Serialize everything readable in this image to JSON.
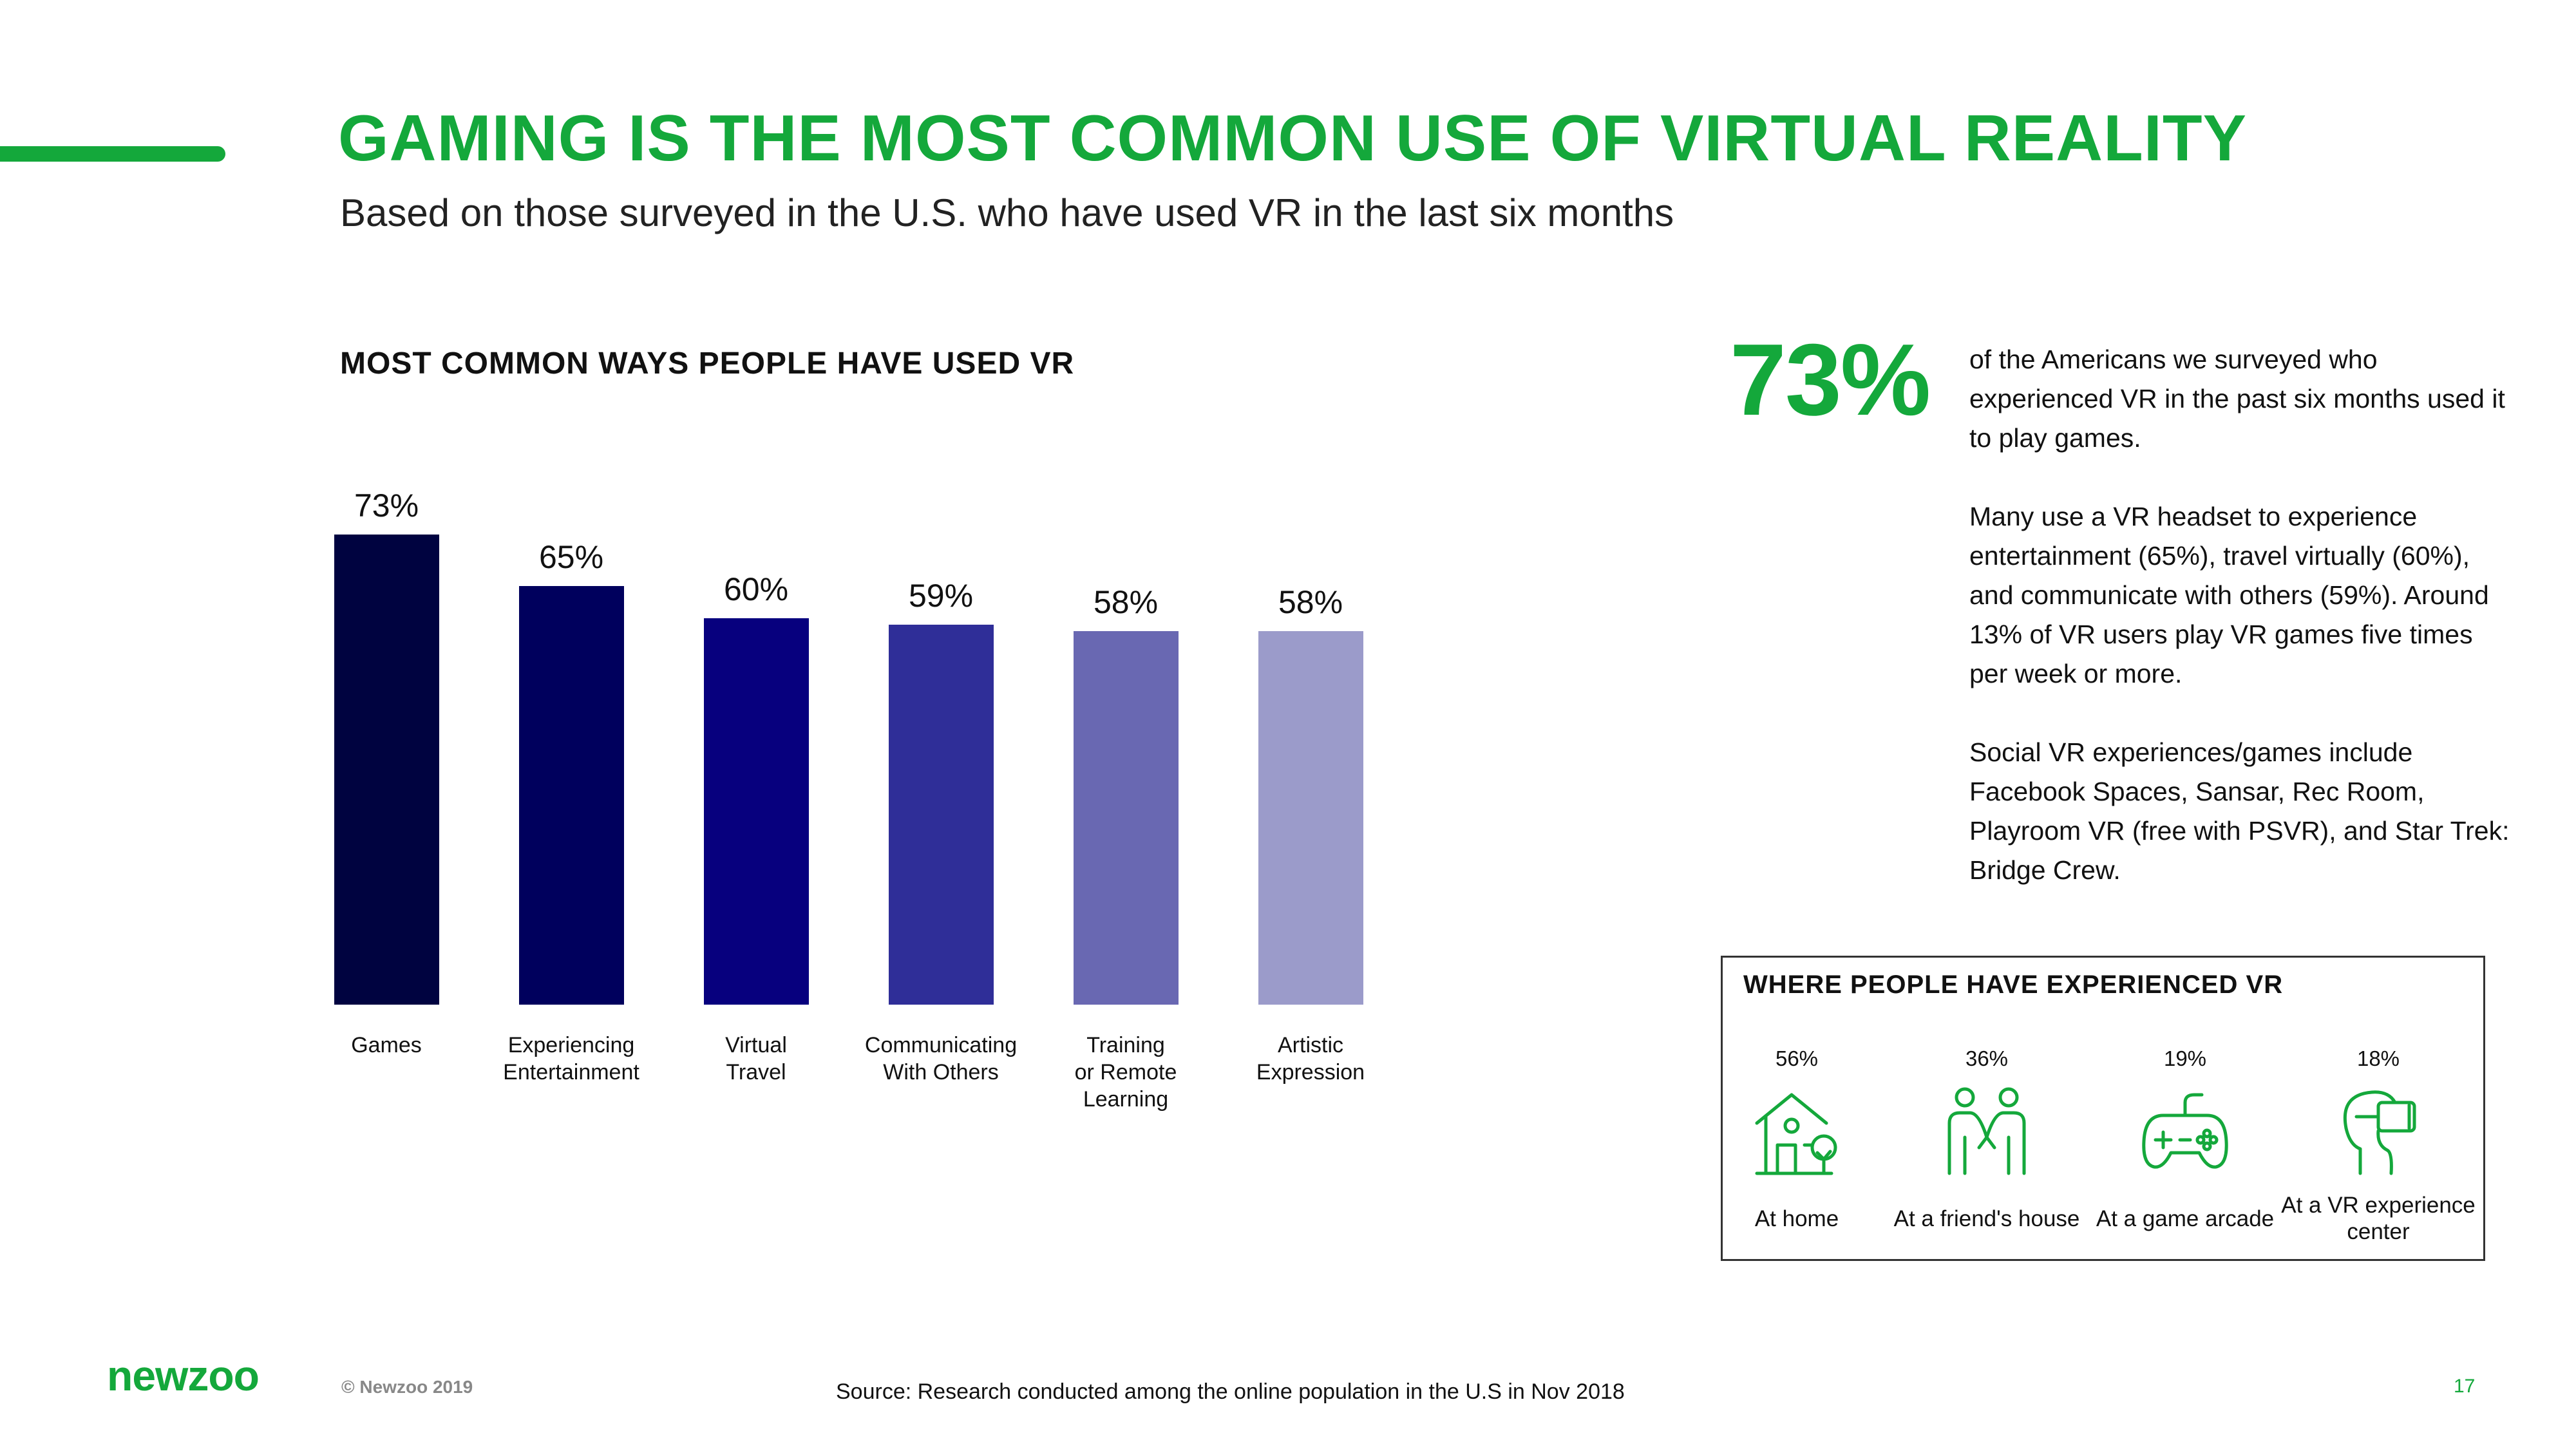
{
  "header": {
    "title": "GAMING IS THE MOST COMMON USE OF VIRTUAL REALITY",
    "subtitle": "Based on those surveyed in the U.S. who have used VR in the last six months",
    "accent_color": "#14a83b"
  },
  "chart_data": {
    "type": "bar",
    "title": "MOST COMMON WAYS PEOPLE HAVE USED VR",
    "xlabel": "",
    "ylabel": "",
    "ylim": [
      0,
      100
    ],
    "grid": false,
    "categories": [
      "Games",
      "Experiencing Entertainment",
      "Virtual Travel",
      "Communicating With Others",
      "Training or Remote Learning",
      "Artistic Expression"
    ],
    "category_lines": [
      [
        "Games"
      ],
      [
        "Experiencing",
        "Entertainment"
      ],
      [
        "Virtual",
        "Travel"
      ],
      [
        "Communicating",
        "With Others"
      ],
      [
        "Training",
        "or Remote",
        "Learning"
      ],
      [
        "Artistic",
        "Expression"
      ]
    ],
    "values": [
      73,
      65,
      60,
      59,
      58,
      58
    ],
    "data_labels": [
      "73%",
      "65%",
      "60%",
      "59%",
      "58%",
      "58%"
    ],
    "colors": [
      "#000340",
      "#00005d",
      "#07007e",
      "#2f2e98",
      "#6968b2",
      "#9b9bca"
    ]
  },
  "highlight": {
    "stat": "73%",
    "paragraphs": [
      "of the Americans we surveyed who experienced VR in the past six months used it to play games.",
      "Many use a VR headset to experience entertainment (65%), travel virtually (60%), and communicate with others (59%). Around 13% of VR users play VR games five times per week or more.",
      "Social VR experiences/games include Facebook Spaces, Sansar, Rec Room, Playroom VR (free with PSVR), and Star Trek: Bridge Crew."
    ]
  },
  "venues": {
    "title": "WHERE PEOPLE HAVE EXPERIENCED VR",
    "items": [
      {
        "pct": "56%",
        "label": "At home",
        "icon": "house-icon"
      },
      {
        "pct": "36%",
        "label": "At a friend's house",
        "icon": "friends-icon"
      },
      {
        "pct": "19%",
        "label": "At a game arcade",
        "icon": "gamepad-icon"
      },
      {
        "pct": "18%",
        "label": "At a VR experience center",
        "icon": "vr-headset-icon"
      }
    ]
  },
  "footer": {
    "logo": "newzoo",
    "copyright": "© Newzoo 2019",
    "source": "Source: Research conducted among the online population in the U.S in Nov 2018",
    "page_number": "17"
  }
}
